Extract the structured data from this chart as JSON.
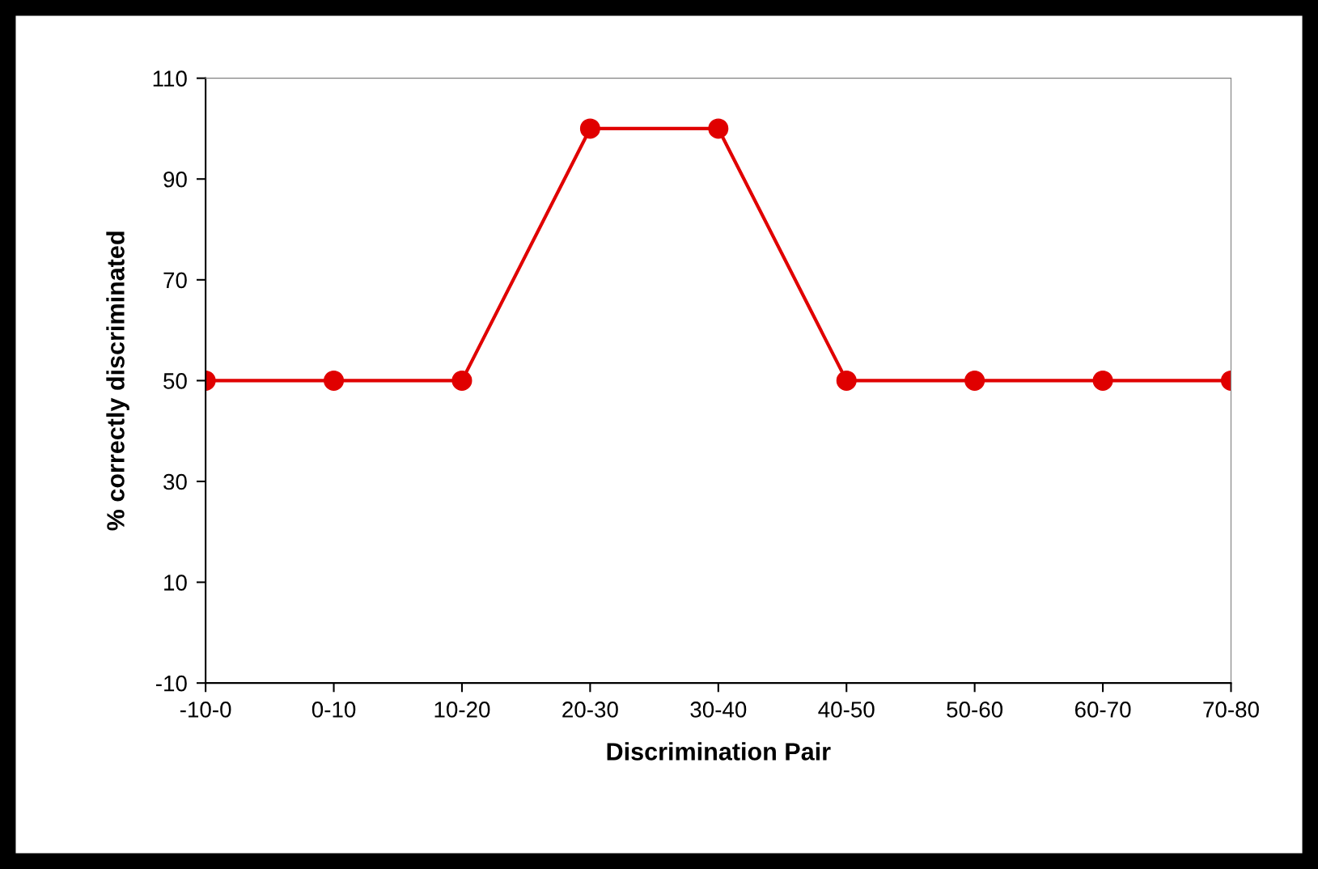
{
  "chart_data": {
    "type": "line",
    "xlabel": "Discrimination Pair",
    "ylabel": "% correctly discriminated",
    "categories": [
      "-10-0",
      "0-10",
      "10-20",
      "20-30",
      "30-40",
      "40-50",
      "50-60",
      "60-70",
      "70-80"
    ],
    "series": [
      {
        "color": "#e00000",
        "values": [
          50,
          50,
          50,
          100,
          100,
          50,
          50,
          50,
          50
        ]
      }
    ],
    "ylim": [
      -10,
      110
    ],
    "yticks": [
      -10,
      10,
      30,
      50,
      70,
      90,
      110
    ],
    "marker": "circle",
    "line_style": "solid",
    "grid": false,
    "legend": false
  }
}
